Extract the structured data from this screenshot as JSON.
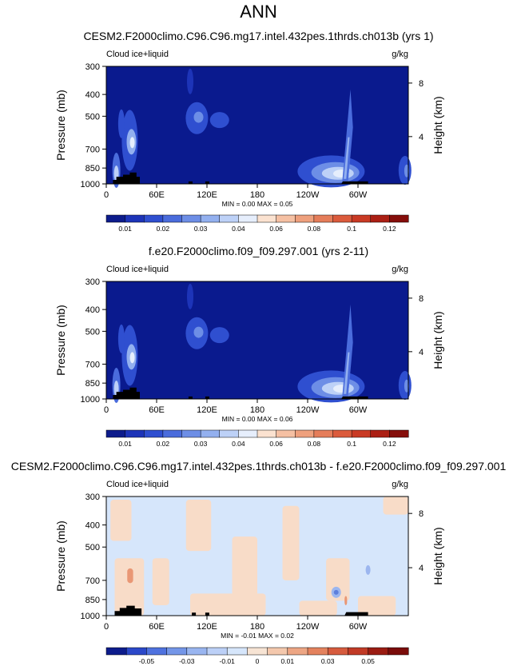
{
  "page_title": "ANN",
  "colors": {
    "base": "#0a1a8e",
    "terrain": "#000000",
    "zero_fill": "#d6e6fb",
    "pos_fill": "#f8dcc8",
    "pos_strong": "#e99775",
    "neg_fill": "#9cb6ef",
    "neg_strong": "#5e7fdc"
  },
  "chart_data": [
    {
      "type": "heatmap",
      "title": "CESM2.F2000climo.C96.C96.mg17.intel.432pes.1thrds.ch013b (yrs 1)",
      "left_label": "Cloud ice+liquid",
      "units": "g/kg",
      "ylabel": "Pressure (mb)",
      "ylabel_right": "Height (km)",
      "yticks": [
        "300",
        "400",
        "500",
        "700",
        "850",
        "1000"
      ],
      "ytick_values": [
        300,
        400,
        500,
        700,
        850,
        1000
      ],
      "right_ticks": [
        "8",
        "4"
      ],
      "right_tick_values": [
        356,
        616
      ],
      "xticks": [
        "0",
        "60E",
        "120E",
        "180",
        "120W",
        "60W"
      ],
      "xtick_values": [
        0,
        60,
        120,
        180,
        240,
        300
      ],
      "xlim": [
        0,
        360
      ],
      "ylim": [
        1000,
        300
      ],
      "stats": "MIN =   0.00  MAX =   0.05",
      "colorbar_labels": [
        "0.01",
        "0.02",
        "0.03",
        "0.04",
        "0.06",
        "0.08",
        "0.1",
        "0.12"
      ],
      "colorbar_levels": [
        0.005,
        0.01,
        0.015,
        0.02,
        0.025,
        0.03,
        0.035,
        0.04,
        0.05,
        0.06,
        0.07,
        0.08,
        0.09,
        0.1,
        0.11,
        0.12,
        0.13
      ]
    },
    {
      "type": "heatmap",
      "title": "f.e20.F2000climo.f09_f09.297.001 (yrs 2-11)",
      "left_label": "Cloud ice+liquid",
      "units": "g/kg",
      "ylabel": "Pressure (mb)",
      "ylabel_right": "Height (km)",
      "yticks": [
        "300",
        "400",
        "500",
        "700",
        "850",
        "1000"
      ],
      "ytick_values": [
        300,
        400,
        500,
        700,
        850,
        1000
      ],
      "right_ticks": [
        "8",
        "4"
      ],
      "right_tick_values": [
        356,
        616
      ],
      "xticks": [
        "0",
        "60E",
        "120E",
        "180",
        "120W",
        "60W"
      ],
      "xtick_values": [
        0,
        60,
        120,
        180,
        240,
        300
      ],
      "xlim": [
        0,
        360
      ],
      "ylim": [
        1000,
        300
      ],
      "stats": "MIN =   0.00  MAX =   0.06",
      "colorbar_labels": [
        "0.01",
        "0.02",
        "0.03",
        "0.04",
        "0.06",
        "0.08",
        "0.1",
        "0.12"
      ],
      "colorbar_levels": [
        0.005,
        0.01,
        0.015,
        0.02,
        0.025,
        0.03,
        0.035,
        0.04,
        0.05,
        0.06,
        0.07,
        0.08,
        0.09,
        0.1,
        0.11,
        0.12,
        0.13
      ]
    },
    {
      "type": "heatmap",
      "title": "CESM2.F2000climo.C96.C96.mg17.intel.432pes.1thrds.ch013b - f.e20.F2000climo.f09_f09.297.001",
      "left_label": "Cloud ice+liquid",
      "units": "g/kg",
      "ylabel": "Pressure (mb)",
      "ylabel_right": "Height (km)",
      "yticks": [
        "300",
        "400",
        "500",
        "700",
        "850",
        "1000"
      ],
      "ytick_values": [
        300,
        400,
        500,
        700,
        850,
        1000
      ],
      "right_ticks": [
        "8",
        "4"
      ],
      "right_tick_values": [
        356,
        616
      ],
      "xticks": [
        "0",
        "60E",
        "120E",
        "180",
        "120W",
        "60W"
      ],
      "xtick_values": [
        0,
        60,
        120,
        180,
        240,
        300
      ],
      "xlim": [
        0,
        360
      ],
      "ylim": [
        1000,
        300
      ],
      "stats": "MIN =  -0.01  MAX =   0.02",
      "colorbar_labels": [
        "-0.05",
        "-0.03",
        "-0.01",
        "0",
        "0.01",
        "0.03",
        "0.05"
      ],
      "colorbar_levels": [
        -0.07,
        -0.06,
        -0.05,
        -0.04,
        -0.03,
        -0.02,
        -0.01,
        -0.005,
        0.005,
        0.01,
        0.02,
        0.03,
        0.04,
        0.05,
        0.06,
        0.07
      ]
    }
  ]
}
